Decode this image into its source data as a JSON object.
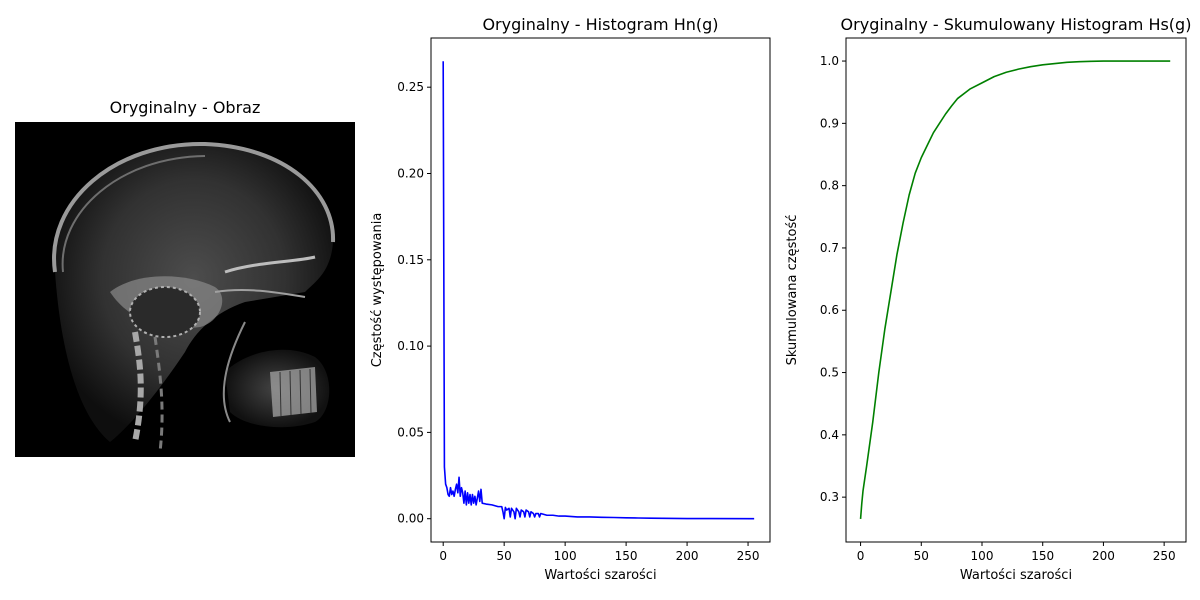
{
  "panels": {
    "image": {
      "title": "Oryginalny - Obraz"
    },
    "histogram": {
      "title": "Oryginalny - Histogram Hn(g)"
    },
    "cumulative": {
      "title": "Oryginalny - Skumulowany Histogram Hs(g)"
    }
  },
  "chart_data": [
    {
      "type": "line",
      "title": "Oryginalny - Histogram Hn(g)",
      "xlabel": "Wartości szarości",
      "ylabel": "Częstość występowania",
      "xlim": [
        -10,
        268
      ],
      "ylim": [
        -0.0135,
        0.2785
      ],
      "xticks": [
        0,
        50,
        100,
        150,
        200,
        250
      ],
      "xtick_labels": [
        "0",
        "50",
        "100",
        "150",
        "200",
        "250"
      ],
      "yticks": [
        0.0,
        0.05,
        0.1,
        0.15,
        0.2,
        0.25
      ],
      "ytick_labels": [
        "0.00",
        "0.05",
        "0.10",
        "0.15",
        "0.20",
        "0.25"
      ],
      "series": [
        {
          "name": "Hn(g)",
          "color": "#0000ff",
          "x": [
            0,
            1,
            2,
            3,
            4,
            5,
            6,
            7,
            8,
            9,
            10,
            11,
            12,
            13,
            14,
            15,
            16,
            17,
            18,
            19,
            20,
            21,
            22,
            23,
            24,
            25,
            26,
            27,
            28,
            29,
            30,
            31,
            32,
            35,
            40,
            45,
            48,
            49,
            50,
            51,
            52,
            54,
            55,
            56,
            58,
            59,
            60,
            62,
            63,
            64,
            66,
            67,
            68,
            70,
            71,
            72,
            74,
            75,
            76,
            78,
            79,
            80,
            85,
            90,
            95,
            100,
            110,
            120,
            130,
            140,
            150,
            160,
            170,
            180,
            200,
            220,
            255
          ],
          "y": [
            0.265,
            0.03,
            0.02,
            0.018,
            0.014,
            0.013,
            0.018,
            0.014,
            0.016,
            0.013,
            0.017,
            0.02,
            0.015,
            0.024,
            0.013,
            0.018,
            0.015,
            0.009,
            0.016,
            0.008,
            0.015,
            0.009,
            0.014,
            0.008,
            0.014,
            0.009,
            0.013,
            0.008,
            0.012,
            0.016,
            0.01,
            0.017,
            0.009,
            0.0085,
            0.008,
            0.007,
            0.007,
            0.004,
            0.0,
            0.0065,
            0.005,
            0.006,
            0.001,
            0.006,
            0.004,
            0.0,
            0.006,
            0.004,
            0.001,
            0.005,
            0.004,
            0.001,
            0.005,
            0.004,
            0.001,
            0.004,
            0.003,
            0.001,
            0.003,
            0.003,
            0.001,
            0.003,
            0.002,
            0.002,
            0.0015,
            0.0015,
            0.001,
            0.001,
            0.0008,
            0.0007,
            0.0005,
            0.0004,
            0.0003,
            0.0002,
            0.0001,
            0.0001,
            0.0
          ]
        }
      ]
    },
    {
      "type": "line",
      "title": "Oryginalny - Skumulowany Histogram Hs(g)",
      "xlabel": "Wartości szarości",
      "ylabel": "Skumulowana częstość",
      "xlim": [
        -12,
        268
      ],
      "ylim": [
        0.228,
        1.037
      ],
      "xticks": [
        0,
        50,
        100,
        150,
        200,
        250
      ],
      "xtick_labels": [
        "0",
        "50",
        "100",
        "150",
        "200",
        "250"
      ],
      "yticks": [
        0.3,
        0.4,
        0.5,
        0.6,
        0.7,
        0.8,
        0.9,
        1.0
      ],
      "ytick_labels": [
        "0.3",
        "0.4",
        "0.5",
        "0.6",
        "0.7",
        "0.8",
        "0.9",
        "1.0"
      ],
      "series": [
        {
          "name": "Hs(g)",
          "color": "#008000",
          "x": [
            0,
            1,
            2,
            5,
            10,
            15,
            20,
            25,
            30,
            35,
            40,
            45,
            50,
            55,
            60,
            65,
            70,
            75,
            80,
            90,
            100,
            110,
            120,
            130,
            140,
            150,
            160,
            170,
            180,
            190,
            200,
            220,
            240,
            255
          ],
          "y": [
            0.265,
            0.29,
            0.31,
            0.35,
            0.42,
            0.5,
            0.57,
            0.63,
            0.69,
            0.74,
            0.785,
            0.82,
            0.845,
            0.865,
            0.885,
            0.9,
            0.915,
            0.928,
            0.94,
            0.955,
            0.965,
            0.975,
            0.982,
            0.987,
            0.991,
            0.994,
            0.996,
            0.998,
            0.999,
            0.9995,
            1.0,
            1.0,
            1.0,
            1.0
          ]
        }
      ]
    }
  ]
}
